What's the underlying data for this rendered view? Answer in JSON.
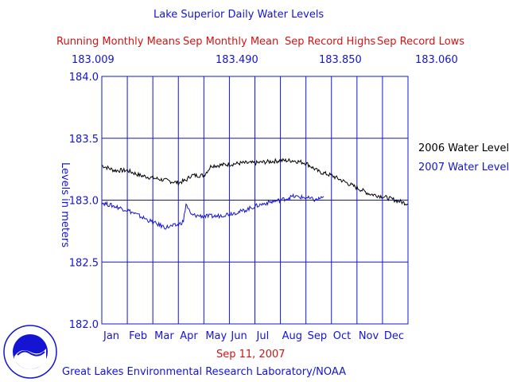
{
  "chart_data": {
    "type": "line",
    "title": "Lake Superior Daily Water Levels",
    "stats_labels": [
      "Running Monthly Means",
      "Sep Monthly Mean",
      "Sep Record Highs",
      "Sep Record Lows"
    ],
    "stats_values": [
      "183.009",
      "183.490",
      "183.850",
      "183.060"
    ],
    "ylabel": "Levels in meters",
    "ylim": [
      182.0,
      184.0
    ],
    "yticks": [
      "184.0",
      "183.5",
      "183.0",
      "182.5",
      "182.0"
    ],
    "months": [
      "Jan",
      "Feb",
      "Mar",
      "Apr",
      "May",
      "Jun",
      "Jul",
      "Aug",
      "Sep",
      "Oct",
      "Nov",
      "Dec"
    ],
    "date_label": "Sep 11, 2007",
    "footer": "Great Lakes Environmental Research Laboratory/NOAA",
    "grid": true,
    "series": [
      {
        "name": "2006 Water Level",
        "color": "#000000",
        "x": [
          0,
          0.5,
          1,
          1.5,
          2,
          2.5,
          3,
          3.3,
          3.5,
          4,
          4.3,
          4.5,
          5,
          5.5,
          6,
          6.5,
          7,
          7.5,
          8,
          8.5,
          9,
          9.5,
          10,
          10.5,
          11,
          11.5,
          12
        ],
        "values": [
          183.28,
          183.24,
          183.24,
          183.2,
          183.18,
          183.16,
          183.14,
          183.16,
          183.2,
          183.2,
          183.28,
          183.28,
          183.29,
          183.3,
          183.3,
          183.31,
          183.32,
          183.32,
          183.3,
          183.23,
          183.2,
          183.15,
          183.1,
          183.05,
          183.03,
          183.0,
          182.97
        ]
      },
      {
        "name": "2007 Water Level",
        "color": "#1414d2",
        "x": [
          0,
          0.5,
          1,
          1.5,
          2,
          2.5,
          3,
          3.2,
          3.3,
          3.5,
          4,
          4.5,
          5,
          5.5,
          6,
          6.5,
          7,
          7.5,
          8,
          8.4,
          8.7
        ],
        "values": [
          182.98,
          182.95,
          182.92,
          182.87,
          182.82,
          182.78,
          182.8,
          182.83,
          182.97,
          182.88,
          182.87,
          182.87,
          182.89,
          182.91,
          182.95,
          182.98,
          183.0,
          183.03,
          183.02,
          183.0,
          183.03
        ]
      }
    ]
  }
}
